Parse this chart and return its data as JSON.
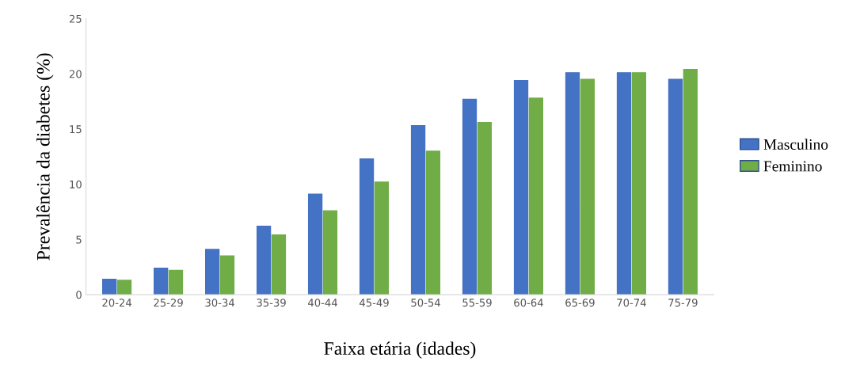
{
  "chart_data": {
    "type": "bar",
    "xlabel": "Faixa etária (idades)",
    "ylabel": "Prevalência da diabetes (%)",
    "categories": [
      "20-24",
      "25-29",
      "30-34",
      "35-39",
      "40-44",
      "45-49",
      "50-54",
      "55-59",
      "60-64",
      "65-69",
      "70-74",
      "75-79"
    ],
    "series": [
      {
        "name": "Masculino",
        "color": "#4472c4",
        "values": [
          1.4,
          2.4,
          4.1,
          6.2,
          9.1,
          12.3,
          15.3,
          17.7,
          19.4,
          20.1,
          20.1,
          19.5
        ]
      },
      {
        "name": "Feminino",
        "color": "#70ad47",
        "values": [
          1.3,
          2.2,
          3.5,
          5.4,
          7.6,
          10.2,
          13.0,
          15.6,
          17.8,
          19.5,
          20.1,
          20.4
        ]
      }
    ],
    "ylim": [
      0,
      25
    ],
    "yticks": [
      0,
      5,
      10,
      15,
      20,
      25
    ],
    "grid": false,
    "legend": "right"
  }
}
